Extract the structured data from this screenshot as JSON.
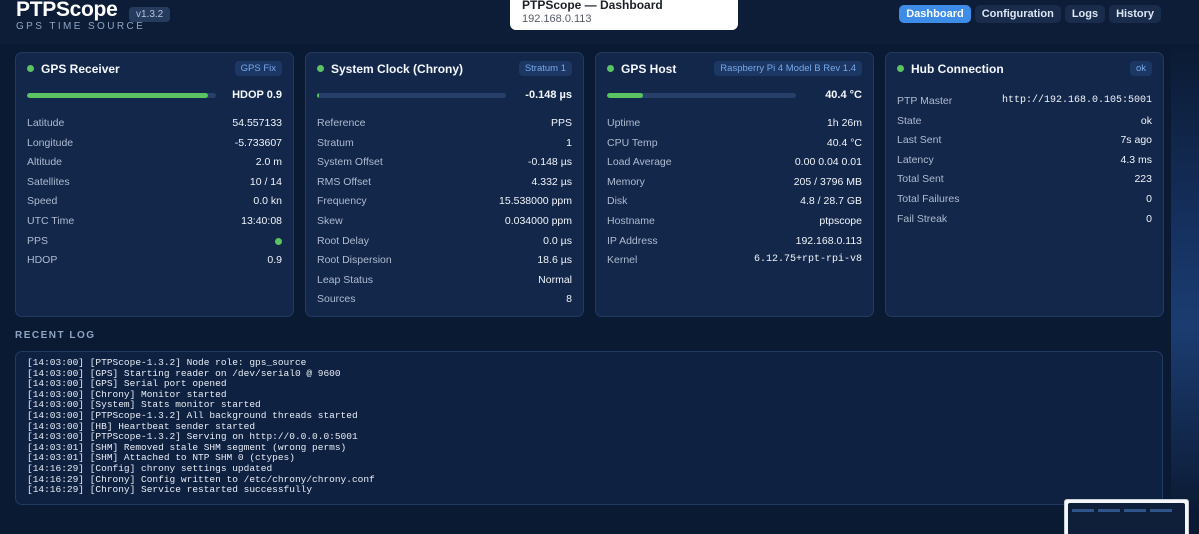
{
  "app": {
    "name": "PTPScope",
    "subtitle": "GPS TIME SOURCE",
    "version": "v1.3.2"
  },
  "tooltip": {
    "title": "PTPScope — Dashboard",
    "address": "192.168.0.113"
  },
  "nav": [
    {
      "label": "Dashboard",
      "active": true
    },
    {
      "label": "Configuration",
      "active": false
    },
    {
      "label": "Logs",
      "active": false
    },
    {
      "label": "History",
      "active": false
    }
  ],
  "gps": {
    "title": "GPS Receiver",
    "badge": "GPS Fix",
    "bar_value": "HDOP 0.9",
    "bar_fraction": 0.96,
    "status_color": "#5ac463",
    "rows": [
      {
        "k": "Latitude",
        "v": "54.557133"
      },
      {
        "k": "Longitude",
        "v": "-5.733607"
      },
      {
        "k": "Altitude",
        "v": "2.0 m"
      },
      {
        "k": "Satellites",
        "v": "10 / 14"
      },
      {
        "k": "Speed",
        "v": "0.0 kn"
      },
      {
        "k": "UTC Time",
        "v": "13:40:08"
      },
      {
        "k": "PPS",
        "v": ""
      },
      {
        "k": "HDOP",
        "v": "0.9"
      }
    ]
  },
  "clock": {
    "title": "System Clock (Chrony)",
    "badge": "Stratum 1",
    "bar_value": "-0.148 µs",
    "bar_fraction": 0.01,
    "rows": [
      {
        "k": "Reference",
        "v": "PPS"
      },
      {
        "k": "Stratum",
        "v": "1"
      },
      {
        "k": "System Offset",
        "v": "-0.148 µs"
      },
      {
        "k": "RMS Offset",
        "v": "4.332 µs"
      },
      {
        "k": "Frequency",
        "v": "15.538000 ppm"
      },
      {
        "k": "Skew",
        "v": "0.034000 ppm"
      },
      {
        "k": "Root Delay",
        "v": "0.0 µs"
      },
      {
        "k": "Root Dispersion",
        "v": "18.6 µs"
      },
      {
        "k": "Leap Status",
        "v": "Normal"
      },
      {
        "k": "Sources",
        "v": "8"
      }
    ]
  },
  "host": {
    "title": "GPS Host",
    "badge": "Raspberry Pi 4 Model B Rev 1.4",
    "bar_value": "40.4 °C",
    "bar_fraction": 0.19,
    "rows": [
      {
        "k": "Uptime",
        "v": "1h 26m"
      },
      {
        "k": "CPU Temp",
        "v": "40.4 °C"
      },
      {
        "k": "Load Average",
        "v": "0.00 0.04 0.01"
      },
      {
        "k": "Memory",
        "v": "205 / 3796 MB"
      },
      {
        "k": "Disk",
        "v": "4.8 / 28.7 GB"
      },
      {
        "k": "Hostname",
        "v": "ptpscope"
      },
      {
        "k": "IP Address",
        "v": "192.168.0.113"
      },
      {
        "k": "Kernel",
        "v": "6.12.75+rpt-rpi-v8"
      }
    ]
  },
  "hub": {
    "title": "Hub Connection",
    "badge": "ok",
    "rows": [
      {
        "k": "PTP Master",
        "v": "http://192.168.0.105:5001"
      },
      {
        "k": "State",
        "v": "ok"
      },
      {
        "k": "Last Sent",
        "v": "7s ago"
      },
      {
        "k": "Latency",
        "v": "4.3 ms"
      },
      {
        "k": "Total Sent",
        "v": "223"
      },
      {
        "k": "Total Failures",
        "v": "0"
      },
      {
        "k": "Fail Streak",
        "v": "0"
      }
    ]
  },
  "log": {
    "title": "RECENT LOG",
    "lines": [
      "[14:03:00] [PTPScope-1.3.2] Node role: gps_source",
      "[14:03:00] [GPS] Starting reader on /dev/serial0 @ 9600",
      "[14:03:00] [GPS] Serial port opened",
      "[14:03:00] [Chrony] Monitor started",
      "[14:03:00] [System] Stats monitor started",
      "[14:03:00] [PTPScope-1.3.2] All background threads started",
      "[14:03:00] [HB] Heartbeat sender started",
      "[14:03:00] [PTPScope-1.3.2] Serving on http://0.0.0.0:5001",
      "[14:03:01] [SHM] Removed stale SHM segment (wrong perms)",
      "[14:03:01] [SHM] Attached to NTP SHM 0 (ctypes)",
      "[14:16:29] [Config] chrony settings updated",
      "[14:16:29] [Chrony] Config written to /etc/chrony/chrony.conf",
      "[14:16:29] [Chrony] Service restarted successfully"
    ]
  }
}
